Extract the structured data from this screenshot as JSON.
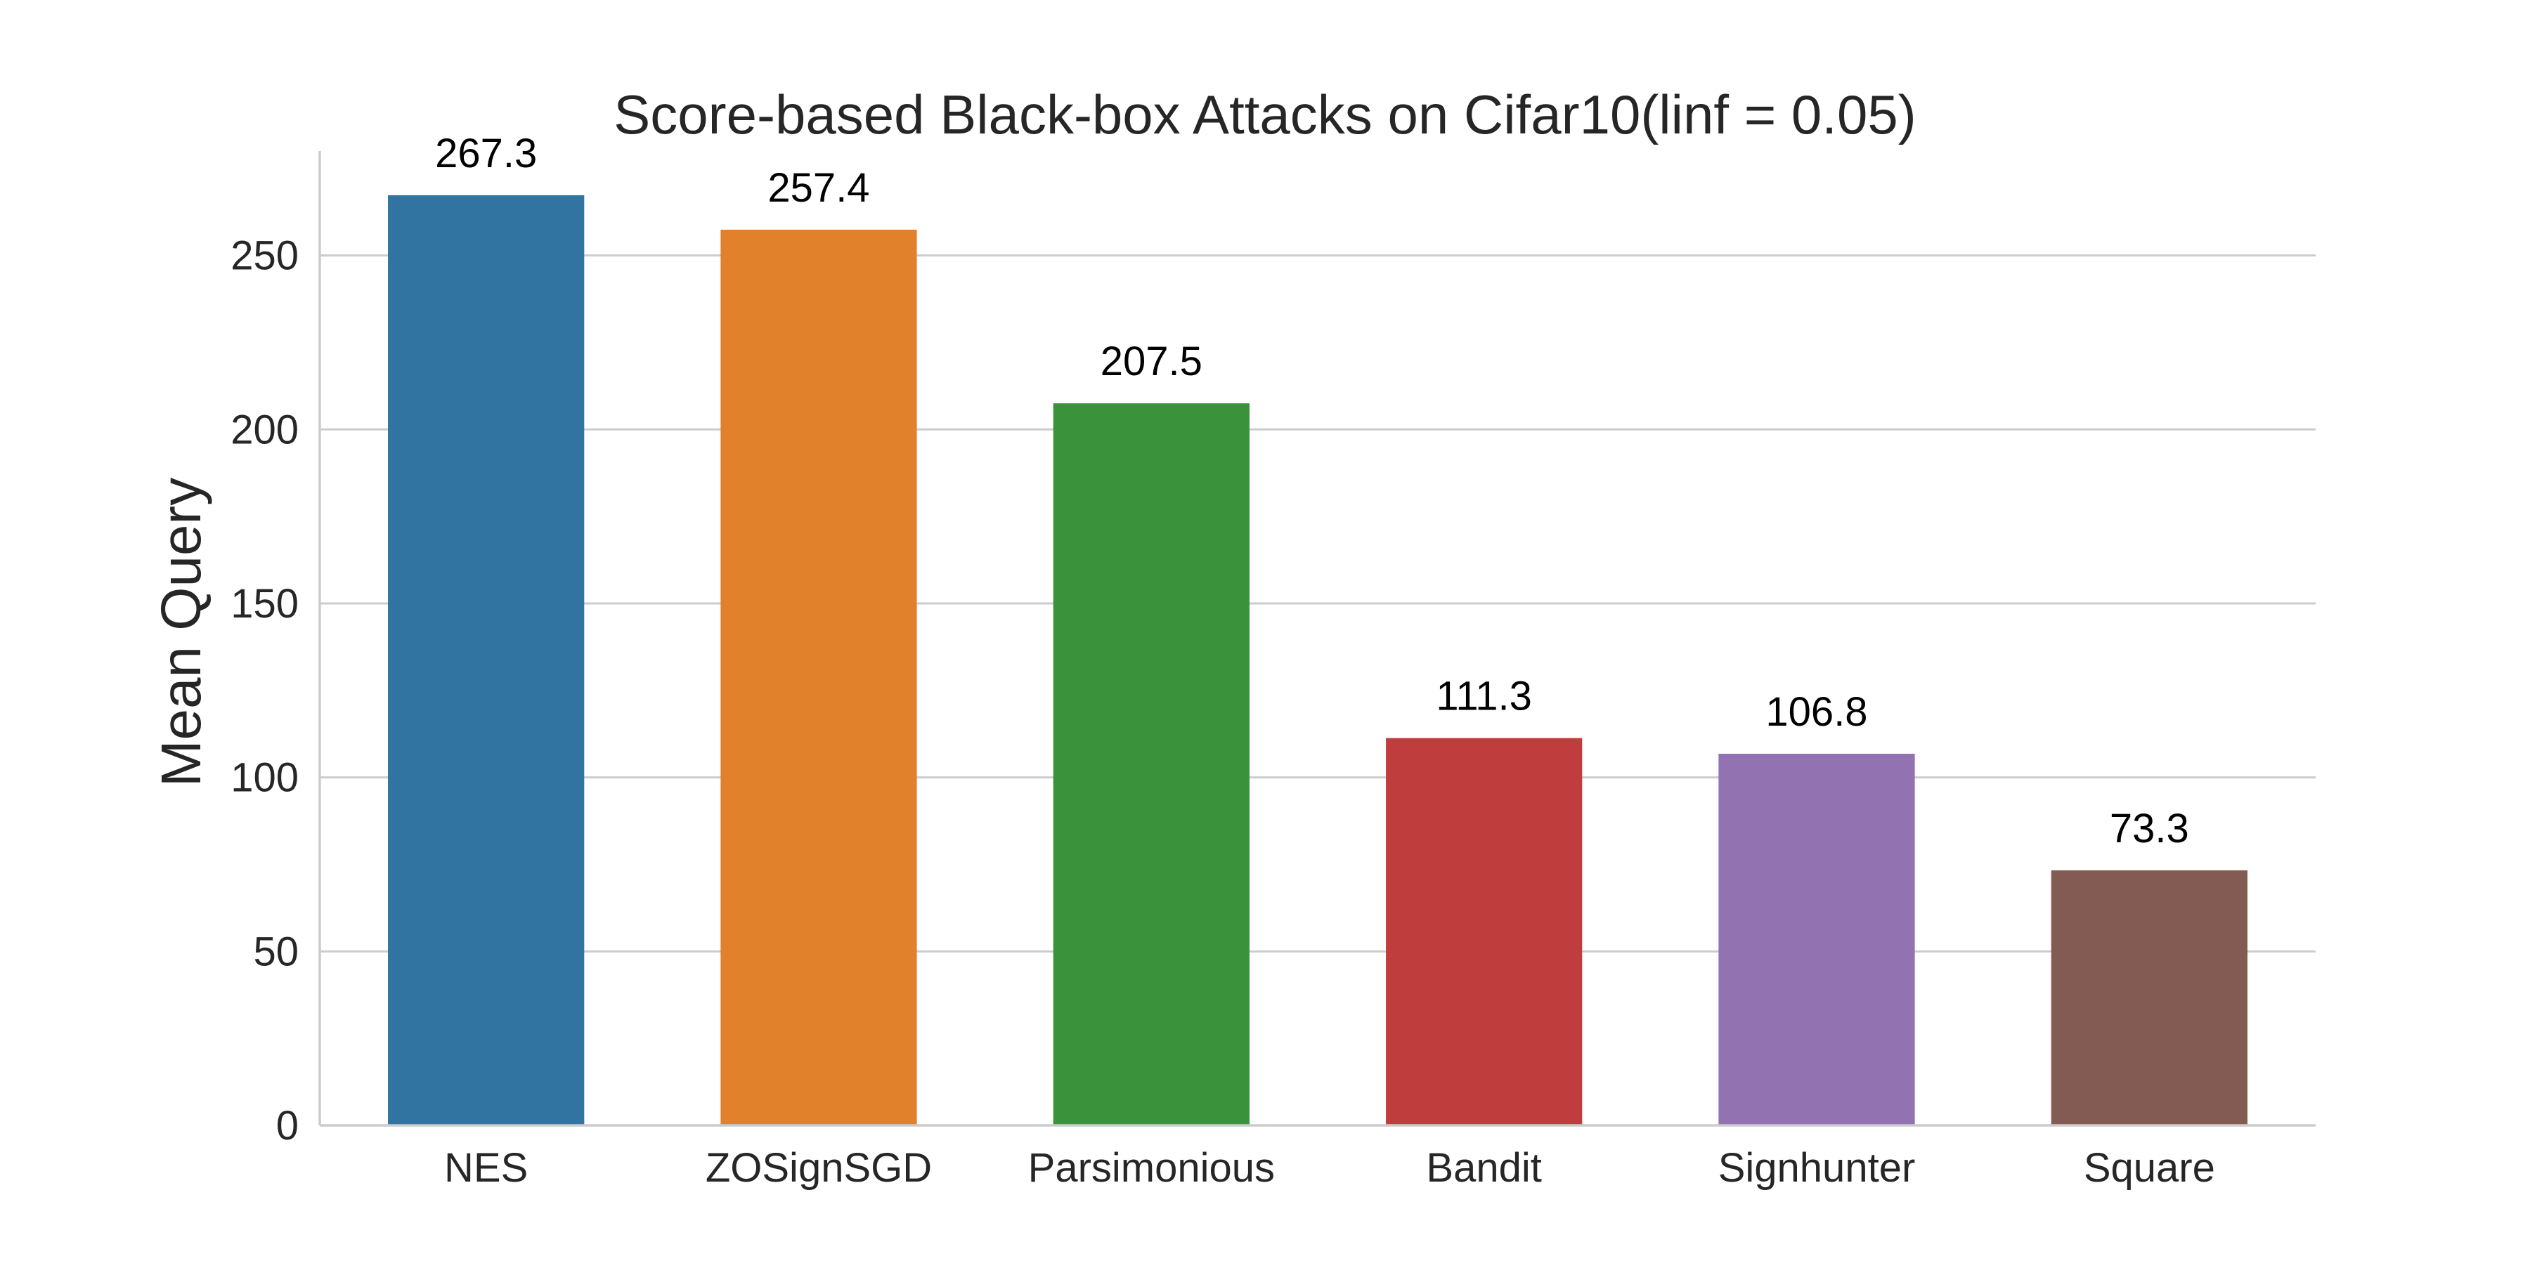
{
  "chart_data": {
    "type": "bar",
    "title": "Score-based Black-box Attacks on Cifar10(linf = 0.05)",
    "xlabel": "",
    "ylabel": "Mean Query",
    "categories": [
      "NES",
      "ZOSignSGD",
      "Parsimonious",
      "Bandit",
      "Signhunter",
      "Square"
    ],
    "values": [
      267.3,
      257.4,
      207.5,
      111.3,
      106.8,
      73.3
    ],
    "value_labels": [
      "267.3",
      "257.4",
      "207.5",
      "111.3",
      "106.8",
      "73.3"
    ],
    "colors": [
      "#3274a1",
      "#e1812c",
      "#3a923a",
      "#c03d3e",
      "#9372b2",
      "#845b53"
    ],
    "ylim": [
      0,
      280
    ],
    "yticks": [
      0,
      50,
      100,
      150,
      200,
      250
    ],
    "grid": "horizontal",
    "legend": "none"
  }
}
